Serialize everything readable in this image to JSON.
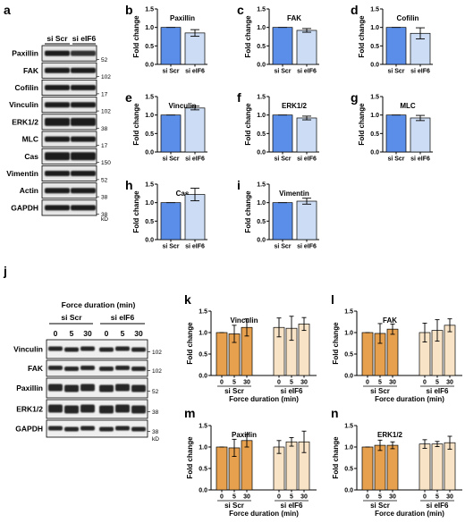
{
  "colors": {
    "scr_dark": "#5b8ee8",
    "scr_light": "#ccdcf4",
    "orange_dark": "#e6a04e",
    "orange_light": "#f8e3c6"
  },
  "panel_letters": [
    "a",
    "b",
    "c",
    "d",
    "e",
    "f",
    "g",
    "h",
    "i",
    "j",
    "k",
    "l",
    "m",
    "n"
  ],
  "blot_a": {
    "lanes": [
      "si Scr",
      "si eIF6"
    ],
    "rows": [
      "Paxillin",
      "FAK",
      "Cofilin",
      "Vinculin",
      "ERK1/2",
      "MLC",
      "Cas",
      "Vimentin",
      "Actin",
      "GAPDH"
    ],
    "markers": [
      "52",
      "102",
      "17",
      "102",
      "38",
      "17",
      "150",
      "52",
      "38",
      "38"
    ],
    "unit": "kD"
  },
  "blot_j": {
    "header": "Force duration (min)",
    "groups": [
      "si Scr",
      "si eIF6"
    ],
    "durations": [
      "0",
      "5",
      "30",
      "0",
      "5",
      "30"
    ],
    "rows": [
      "Vinculin",
      "FAK",
      "Paxillin",
      "ERK1/2",
      "GAPDH"
    ],
    "markers": [
      "102",
      "102",
      "52",
      "38",
      "38"
    ],
    "unit": "kD"
  },
  "chart_data": [
    {
      "id": "b",
      "type": "bar",
      "title": "Paxillin",
      "ylabel": "Fold change",
      "categories": [
        "si Scr",
        "si eIF6"
      ],
      "values": [
        1.0,
        0.85
      ],
      "errors": [
        0,
        0.09
      ],
      "ylim": [
        0,
        1.5
      ],
      "yticks": [
        "0.0",
        "0.5",
        "1.0",
        "1.5"
      ]
    },
    {
      "id": "c",
      "type": "bar",
      "title": "FAK",
      "ylabel": "Fold change",
      "categories": [
        "si Scr",
        "si eIF6"
      ],
      "values": [
        1.0,
        0.92
      ],
      "errors": [
        0,
        0.05
      ],
      "ylim": [
        0,
        1.5
      ],
      "yticks": [
        "0.0",
        "0.5",
        "1.0",
        "1.5"
      ]
    },
    {
      "id": "d",
      "type": "bar",
      "title": "Cofilin",
      "ylabel": "Fold change",
      "categories": [
        "si Scr",
        "si eIF6"
      ],
      "values": [
        1.0,
        0.84
      ],
      "errors": [
        0,
        0.15
      ],
      "ylim": [
        0,
        1.5
      ],
      "yticks": [
        "0.0",
        "0.5",
        "1.0",
        "1.5"
      ]
    },
    {
      "id": "e",
      "type": "bar",
      "title": "Vinculin",
      "ylabel": "Fold change",
      "categories": [
        "si Scr",
        "si eIF6"
      ],
      "values": [
        1.0,
        1.19
      ],
      "errors": [
        0,
        0.05
      ],
      "ylim": [
        0,
        1.5
      ],
      "yticks": [
        "0.0",
        "0.5",
        "1.0",
        "1.5"
      ]
    },
    {
      "id": "f",
      "type": "bar",
      "title": "ERK1/2",
      "ylabel": "Fold change",
      "categories": [
        "si Scr",
        "si eIF6"
      ],
      "values": [
        1.0,
        0.92
      ],
      "errors": [
        0,
        0.05
      ],
      "ylim": [
        0,
        1.5
      ],
      "yticks": [
        "0.0",
        "0.5",
        "1.0",
        "1.5"
      ]
    },
    {
      "id": "g",
      "type": "bar",
      "title": "MLC",
      "ylabel": "Fold change",
      "categories": [
        "si Scr",
        "si eIF6"
      ],
      "values": [
        1.0,
        0.92
      ],
      "errors": [
        0,
        0.07
      ],
      "ylim": [
        0,
        1.5
      ],
      "yticks": [
        "0.0",
        "0.5",
        "1.0",
        "1.5"
      ]
    },
    {
      "id": "h",
      "type": "bar",
      "title": "Cas",
      "ylabel": "Fold change",
      "categories": [
        "si Scr",
        "si eIF6"
      ],
      "values": [
        1.0,
        1.22
      ],
      "errors": [
        0,
        0.17
      ],
      "ylim": [
        0,
        1.5
      ],
      "yticks": [
        "0.0",
        "0.5",
        "1.0",
        "1.5"
      ]
    },
    {
      "id": "i",
      "type": "bar",
      "title": "Vimentin",
      "ylabel": "Fold change",
      "categories": [
        "si Scr",
        "si eIF6"
      ],
      "values": [
        1.0,
        1.04
      ],
      "errors": [
        0,
        0.08
      ],
      "ylim": [
        0,
        1.5
      ],
      "yticks": [
        "0.0",
        "0.5",
        "1.0",
        "1.5"
      ]
    },
    {
      "id": "k",
      "type": "bar",
      "title": "Vinculin",
      "ylabel": "Fold change",
      "xlabel": "Force duration (min)",
      "groups": [
        "si Scr",
        "si eIF6"
      ],
      "categories": [
        "0",
        "5",
        "30",
        "0",
        "5",
        "30"
      ],
      "values": [
        1.0,
        0.97,
        1.12,
        1.12,
        1.1,
        1.2
      ],
      "errors": [
        0,
        0.2,
        0.2,
        0.22,
        0.28,
        0.15
      ],
      "ylim": [
        0,
        1.5
      ],
      "yticks": [
        "0.0",
        "0.5",
        "1.0",
        "1.5"
      ]
    },
    {
      "id": "l",
      "type": "bar",
      "title": "FAK",
      "ylabel": "Fold change",
      "xlabel": "Force duration (min)",
      "groups": [
        "si Scr",
        "si eIF6"
      ],
      "categories": [
        "0",
        "5",
        "30",
        "0",
        "5",
        "30"
      ],
      "values": [
        1.0,
        0.98,
        1.08,
        1.0,
        1.05,
        1.17
      ],
      "errors": [
        0,
        0.23,
        0.12,
        0.22,
        0.25,
        0.15
      ],
      "ylim": [
        0,
        1.5
      ],
      "yticks": [
        "0.0",
        "0.5",
        "1.0",
        "1.5"
      ]
    },
    {
      "id": "m",
      "type": "bar",
      "title": "Paxillin",
      "ylabel": "Fold change",
      "xlabel": "Force duration (min)",
      "groups": [
        "si Scr",
        "si eIF6"
      ],
      "categories": [
        "0",
        "5",
        "30",
        "0",
        "5",
        "30"
      ],
      "values": [
        1.0,
        0.98,
        1.15,
        1.0,
        1.12,
        1.12
      ],
      "errors": [
        0,
        0.2,
        0.15,
        0.15,
        0.1,
        0.25
      ],
      "ylim": [
        0,
        1.5
      ],
      "yticks": [
        "0.0",
        "0.5",
        "1.0",
        "1.5"
      ]
    },
    {
      "id": "n",
      "type": "bar",
      "title": "ERK1/2",
      "ylabel": "Fold change",
      "xlabel": "Force duration (min)",
      "groups": [
        "si Scr",
        "si eIF6"
      ],
      "categories": [
        "0",
        "5",
        "30",
        "0",
        "5",
        "30"
      ],
      "values": [
        1.0,
        1.04,
        1.04,
        1.07,
        1.07,
        1.1
      ],
      "errors": [
        0,
        0.12,
        0.08,
        0.1,
        0.06,
        0.15
      ],
      "ylim": [
        0,
        1.5
      ],
      "yticks": [
        "0.0",
        "0.5",
        "1.0",
        "1.5"
      ]
    }
  ]
}
